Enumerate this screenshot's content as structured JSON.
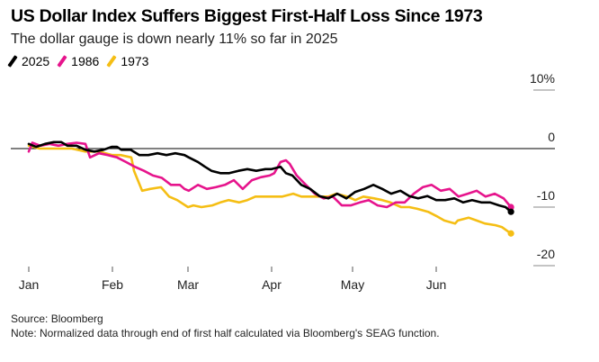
{
  "header": {
    "title": "US Dollar Index Suffers Biggest First-Half Loss Since 1973",
    "subtitle": "The dollar gauge is down nearly 11% so far in 2025"
  },
  "legend": [
    {
      "label": "2025",
      "color": "#000000"
    },
    {
      "label": "1986",
      "color": "#e6148c"
    },
    {
      "label": "1973",
      "color": "#f5be14"
    }
  ],
  "footer": {
    "source": "Source: Bloomberg",
    "note": "Note: Normalized data through end of first half calculated via Bloomberg's SEAG function."
  },
  "chart_data": {
    "type": "line",
    "title": "US Dollar Index Suffers Biggest First-Half Loss Since 1973",
    "subtitle": "The dollar gauge is down nearly 11% so far in 2025",
    "xlabel": "",
    "ylabel": "",
    "x_unit": "day of year (Jan 1 = 0)",
    "y_unit": "% change",
    "xlim": [
      0,
      180
    ],
    "ylim": [
      -20,
      10
    ],
    "grid": false,
    "zero_line": true,
    "y_axis_side": "right",
    "legend_position": "top-left",
    "x_ticks": [
      {
        "label": "Jan",
        "value": 0
      },
      {
        "label": "Feb",
        "value": 31
      },
      {
        "label": "Mar",
        "value": 59
      },
      {
        "label": "Apr",
        "value": 90
      },
      {
        "label": "May",
        "value": 120
      },
      {
        "label": "Jun",
        "value": 151
      }
    ],
    "y_ticks": [
      {
        "label": "10%",
        "value": 10
      },
      {
        "label": "0",
        "value": 0
      },
      {
        "label": "-10",
        "value": -10
      },
      {
        "label": "-20",
        "value": -20
      }
    ],
    "series": [
      {
        "name": "1973",
        "color": "#f5be14",
        "end_marker": true,
        "x": [
          0,
          4,
          9,
          16,
          21,
          26,
          31,
          34,
          38,
          39,
          42,
          45,
          49,
          52,
          55,
          59,
          61,
          64,
          68,
          71,
          74,
          78,
          81,
          84,
          88,
          91,
          94,
          98,
          101,
          104,
          108,
          111,
          114,
          118,
          121,
          124,
          128,
          131,
          134,
          138,
          141,
          144,
          148,
          151,
          154,
          158,
          159,
          163,
          166,
          169,
          173,
          175.3,
          178.7
        ],
        "values": [
          0.5,
          0,
          0,
          0,
          -0.5,
          -0.5,
          -1.1,
          -1.1,
          -1.5,
          -3.8,
          -7.2,
          -6.9,
          -6.6,
          -8.2,
          -8.8,
          -10,
          -9.7,
          -10,
          -9.7,
          -9.2,
          -8.8,
          -9.2,
          -8.8,
          -8.2,
          -8.2,
          -8.2,
          -8.2,
          -7.7,
          -8.2,
          -8.2,
          -8.2,
          -8.2,
          -7.7,
          -8.2,
          -8.8,
          -8.2,
          -8.5,
          -8.8,
          -9.2,
          -10,
          -10,
          -10.3,
          -10.8,
          -11.5,
          -12.3,
          -12.8,
          -12.3,
          -11.8,
          -12.3,
          -12.8,
          -13.1,
          -13.4,
          -14.5
        ]
      },
      {
        "name": "1986",
        "color": "#e6148c",
        "end_marker": true,
        "x": [
          0,
          1.3,
          4.3,
          7.7,
          11,
          14.3,
          17.7,
          21,
          22.7,
          26,
          29.3,
          32.7,
          36,
          39.3,
          42.7,
          46,
          49.3,
          52.7,
          56,
          57.7,
          59.3,
          62.7,
          66,
          69.3,
          72.7,
          76,
          79.3,
          82.7,
          86,
          89.3,
          91,
          93.3,
          95.3,
          96.7,
          99.3,
          102.7,
          106,
          109.3,
          112.7,
          116,
          119.3,
          122.7,
          126,
          129.3,
          132.7,
          136,
          139.3,
          142.7,
          146,
          149.3,
          152.7,
          156,
          159.3,
          162.7,
          166,
          169.3,
          172.7,
          176,
          178.7
        ],
        "values": [
          -0.5,
          1,
          0.5,
          0.8,
          0.5,
          0.8,
          1,
          0.8,
          -1.5,
          -0.8,
          -1.1,
          -1.5,
          -2.3,
          -3.1,
          -3.8,
          -4.6,
          -5,
          -6.2,
          -6.2,
          -6.9,
          -7.2,
          -6.2,
          -6.9,
          -6.6,
          -6.2,
          -5.4,
          -6.9,
          -5.4,
          -4.9,
          -4.6,
          -4.2,
          -2.3,
          -2,
          -2.6,
          -4.6,
          -6.2,
          -7.7,
          -8.5,
          -8.2,
          -9.7,
          -9.7,
          -9.2,
          -8.8,
          -9.7,
          -10,
          -9.2,
          -9.2,
          -7.7,
          -6.6,
          -6.2,
          -7.2,
          -6.9,
          -8.2,
          -7.7,
          -7.2,
          -8.2,
          -7.7,
          -8.5,
          -10
        ]
      },
      {
        "name": "2025",
        "color": "#000000",
        "end_marker": true,
        "x": [
          0,
          2.7,
          6,
          9.3,
          12,
          14.3,
          17.7,
          21,
          24.3,
          27.7,
          30.7,
          32.7,
          34.3,
          37.7,
          41,
          44.3,
          47.7,
          51,
          54.3,
          57.7,
          59.3,
          62.7,
          65.3,
          67.7,
          71,
          74.3,
          77.7,
          81,
          84.3,
          87.7,
          90,
          93.3,
          95.3,
          97.7,
          101,
          104.3,
          107.7,
          111,
          114.3,
          117.7,
          121,
          124.3,
          127.7,
          131,
          134.3,
          137.7,
          141,
          144.3,
          147.7,
          151,
          154.3,
          157.7,
          161,
          164.3,
          167.7,
          171,
          174.3,
          176.7,
          178.7
        ],
        "values": [
          0.8,
          0.3,
          0.8,
          1.1,
          1.1,
          0.5,
          0.5,
          -0.2,
          -0.5,
          -0.2,
          0.3,
          0.3,
          -0.2,
          -0.2,
          -1.1,
          -1.1,
          -0.8,
          -1.1,
          -0.8,
          -1.1,
          -1.5,
          -2.3,
          -3.1,
          -3.8,
          -4.2,
          -4.2,
          -3.8,
          -3.5,
          -3.8,
          -3.5,
          -3.5,
          -3.1,
          -4.2,
          -4.6,
          -6.2,
          -6.9,
          -8.1,
          -8.5,
          -7.7,
          -8.5,
          -7.4,
          -6.9,
          -6.2,
          -6.9,
          -7.7,
          -7.2,
          -8.1,
          -8.5,
          -8.1,
          -8.8,
          -8.8,
          -8.5,
          -9.2,
          -8.8,
          -9.2,
          -9.2,
          -9.7,
          -10,
          -10.8
        ]
      }
    ]
  }
}
